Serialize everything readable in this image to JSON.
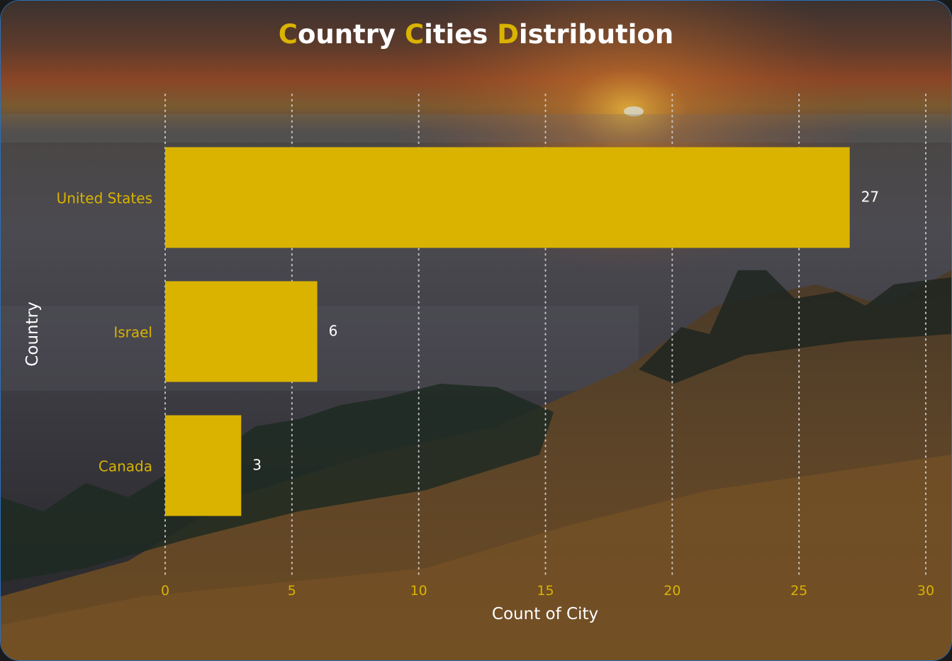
{
  "title_parts": [
    {
      "cap": "C",
      "rest": "ountry "
    },
    {
      "cap": "C",
      "rest": "ities "
    },
    {
      "cap": "D",
      "rest": "istribution"
    }
  ],
  "colors": {
    "bar": "#d9b300",
    "category_label": "#d9b300",
    "tick_label": "#d9b300",
    "value_label": "#ffffff",
    "axis_title": "#ffffff",
    "grid": "#d8d8d8",
    "border": "#2d6fb7"
  },
  "chart_data": {
    "type": "bar",
    "orientation": "horizontal",
    "title": "Country Cities Distribution",
    "categories": [
      "United States",
      "Israel",
      "Canada"
    ],
    "values": [
      27,
      6,
      3
    ],
    "xlabel": "Count of City",
    "ylabel": "Country",
    "xlim": [
      0,
      30
    ],
    "xticks": [
      0,
      5,
      10,
      15,
      20,
      25,
      30
    ],
    "grid": "vertical dotted",
    "data_labels": true
  }
}
